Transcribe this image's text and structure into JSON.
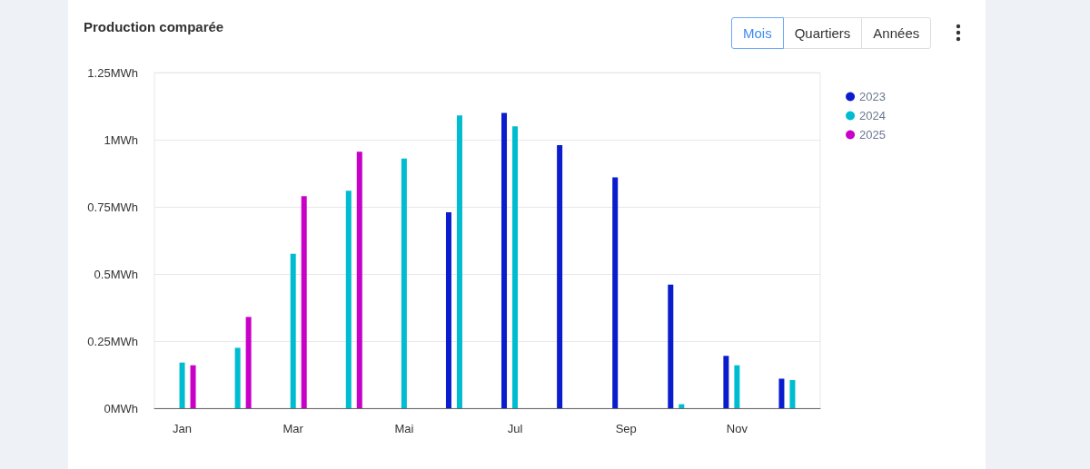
{
  "chart_data": {
    "type": "bar",
    "title": "Production comparée",
    "categories": [
      "Jan",
      null,
      "Mar",
      null,
      "Mai",
      null,
      "Jul",
      null,
      "Sep",
      null,
      "Nov",
      null
    ],
    "series": [
      {
        "name": "2023",
        "color": "#0a1ccc",
        "values": [
          null,
          null,
          null,
          null,
          null,
          0.73,
          1.1,
          0.98,
          0.86,
          0.46,
          0.195,
          0.11
        ]
      },
      {
        "name": "2024",
        "color": "#00bcd0",
        "values": [
          0.17,
          0.225,
          0.575,
          0.81,
          0.93,
          1.09,
          1.05,
          null,
          null,
          0.015,
          0.16,
          0.105
        ]
      },
      {
        "name": "2025",
        "color": "#c800c8",
        "values": [
          0.16,
          0.34,
          0.79,
          0.955,
          null,
          null,
          null,
          null,
          null,
          null,
          null,
          null
        ]
      }
    ],
    "ylim": [
      0,
      1.25
    ],
    "yticks": [
      {
        "value": 0,
        "label": "0MWh"
      },
      {
        "value": 0.25,
        "label": "0.25MWh"
      },
      {
        "value": 0.5,
        "label": "0.5MWh"
      },
      {
        "value": 0.75,
        "label": "0.75MWh"
      },
      {
        "value": 1,
        "label": "1MWh"
      },
      {
        "value": 1.25,
        "label": "1.25MWh"
      }
    ],
    "grid": "y",
    "legend": "right",
    "annotations": [
      "Mois",
      "Quartiers",
      "Années"
    ]
  }
}
